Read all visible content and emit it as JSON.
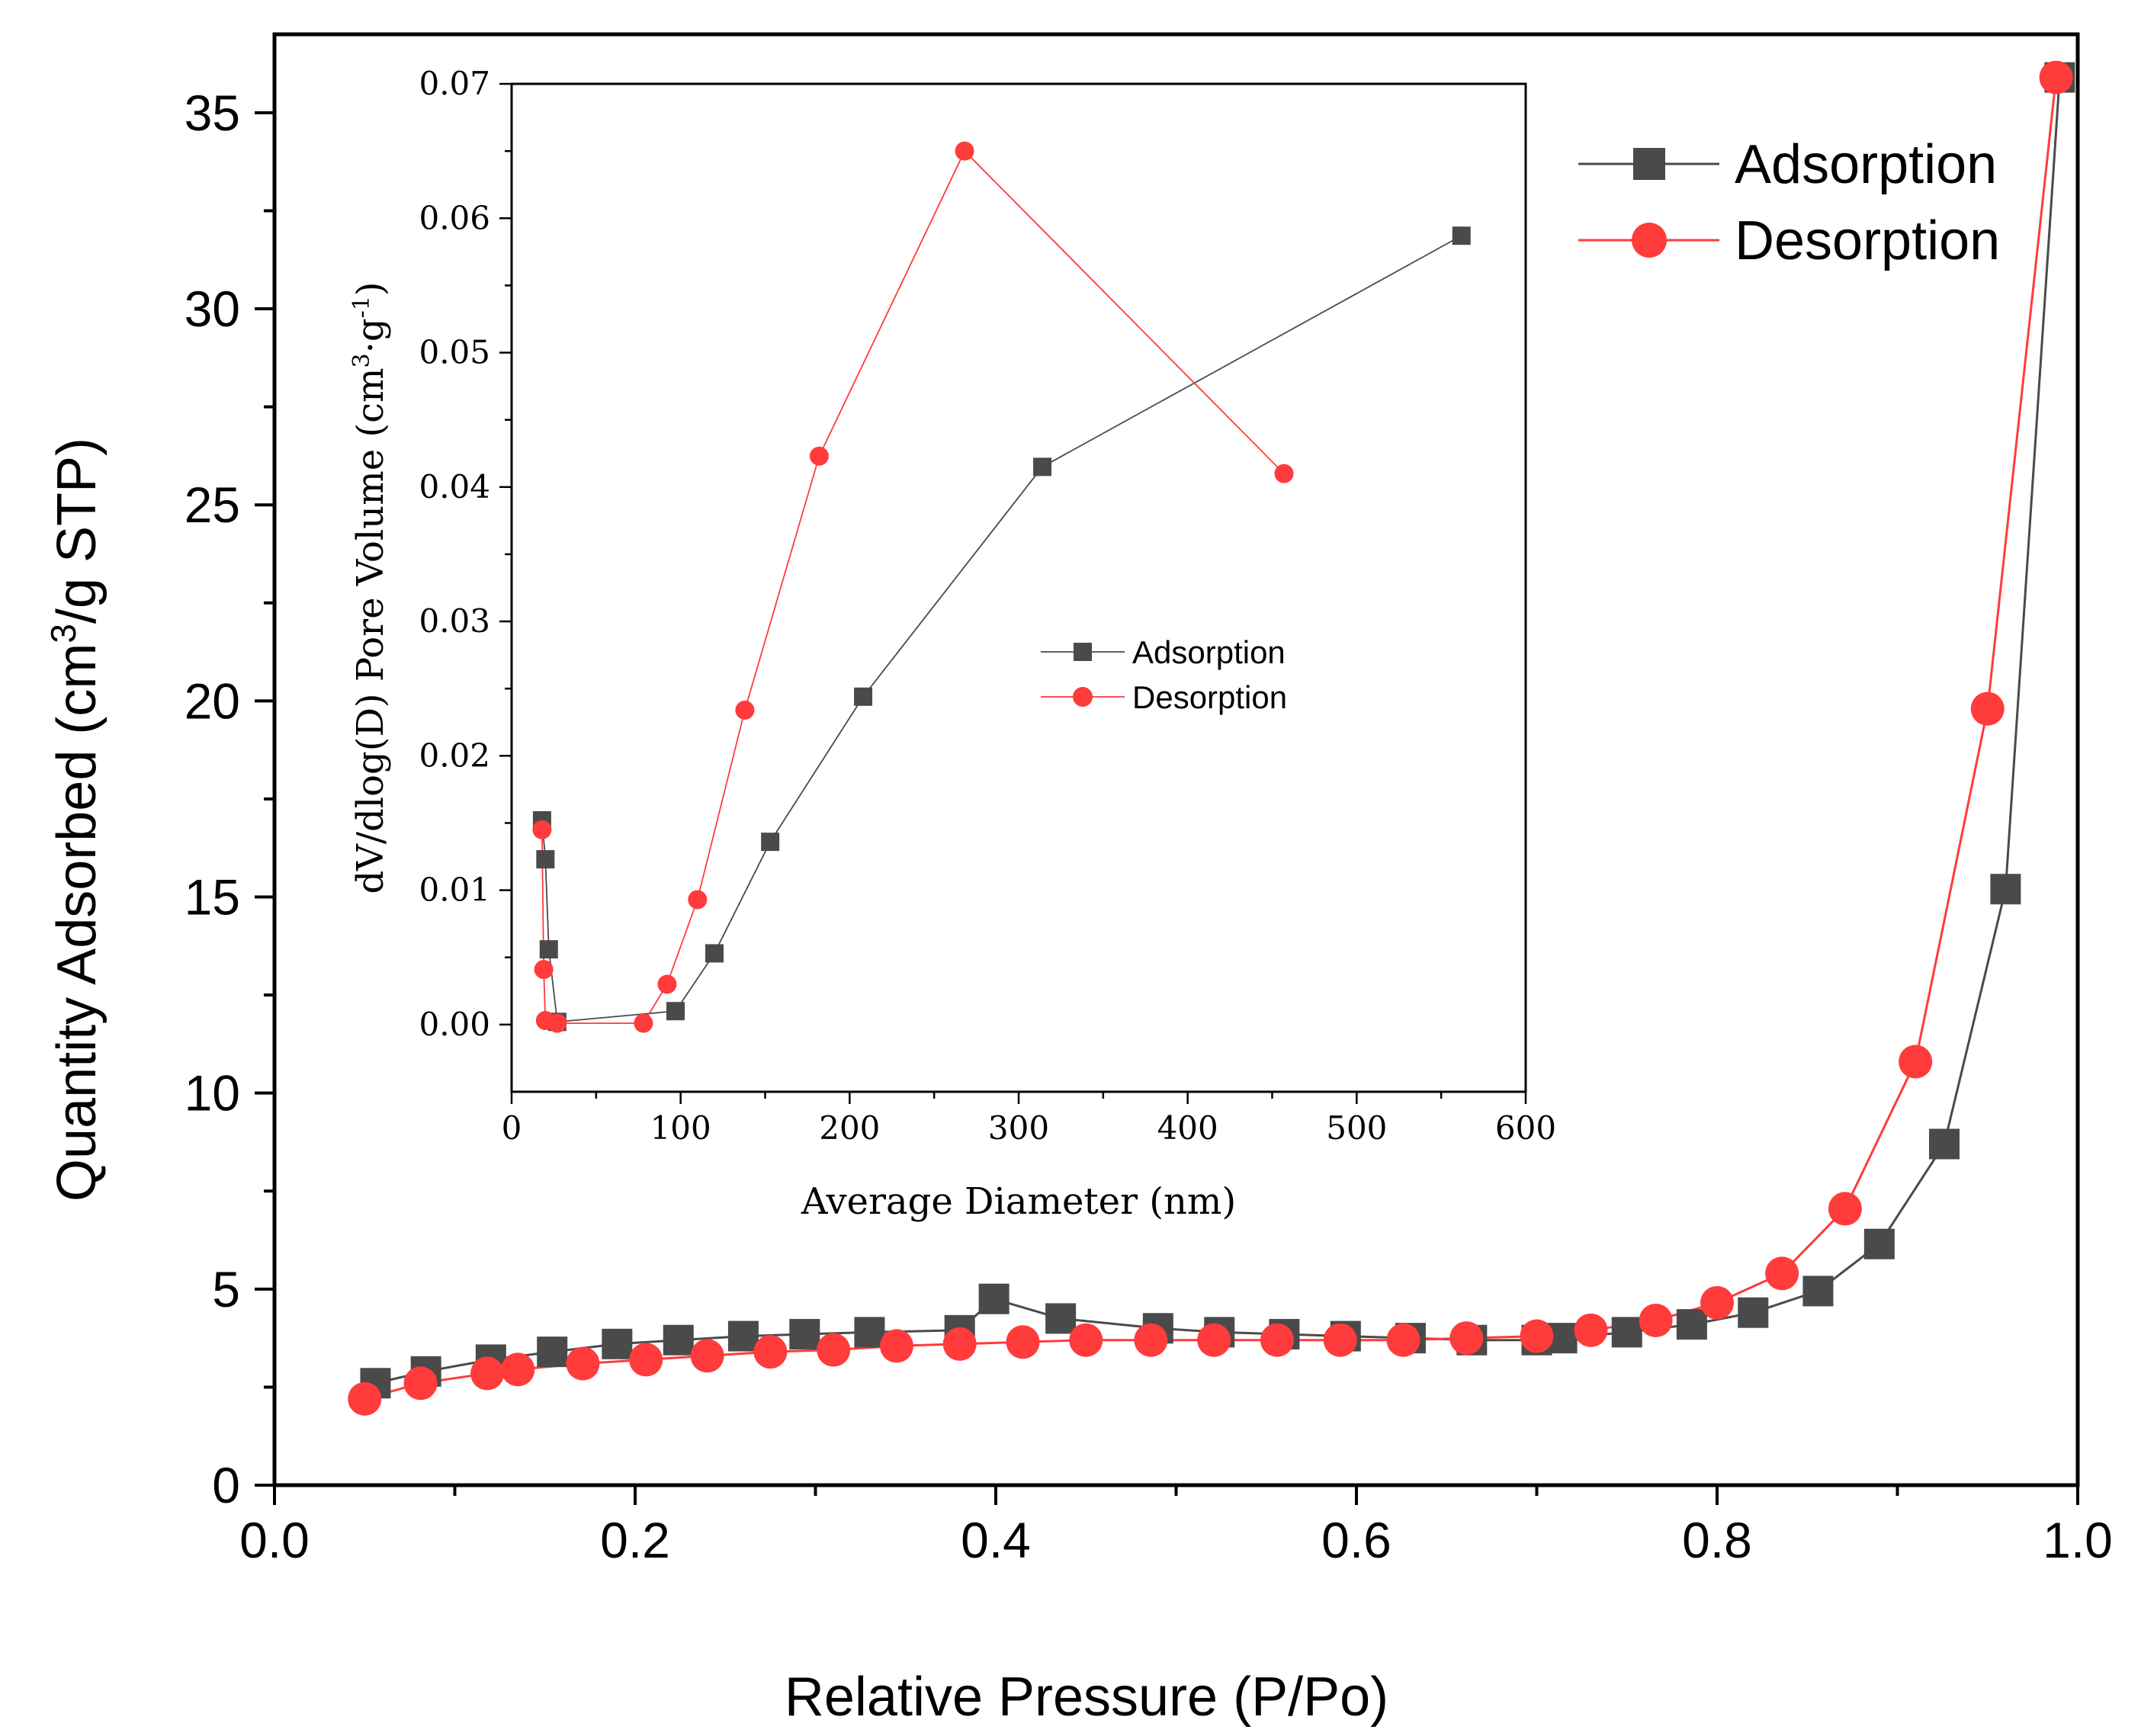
{
  "colors": {
    "adsorption": "#4a4a4a",
    "desorption": "#ff3b3b",
    "axis": "#000000"
  },
  "chart_data": [
    {
      "type": "scatter",
      "title": "",
      "xlabel": "Relative Pressure (P/Po)",
      "ylabel": "Quantity Adsorbed (cm3/g STP)",
      "ylabel_parts": {
        "before": "Quantity Adsorbed (cm",
        "sup": "3",
        "after": "/g STP)"
      },
      "xlim": [
        0.0,
        1.0
      ],
      "ylim": [
        0,
        37
      ],
      "xticks": [
        "0.0",
        "0.2",
        "0.4",
        "0.6",
        "0.8",
        "1.0"
      ],
      "yticks": [
        "0",
        "5",
        "10",
        "15",
        "20",
        "25",
        "30",
        "35"
      ],
      "legend_position": "top-right",
      "series": [
        {
          "name": "Adsorption",
          "marker": "square",
          "x": [
            0.056,
            0.084,
            0.12,
            0.154,
            0.19,
            0.224,
            0.26,
            0.294,
            0.33,
            0.38,
            0.399,
            0.436,
            0.49,
            0.524,
            0.56,
            0.594,
            0.63,
            0.664,
            0.7,
            0.714,
            0.75,
            0.786,
            0.82,
            0.856,
            0.89,
            0.926,
            0.96,
            0.99
          ],
          "y": [
            2.6,
            2.9,
            3.2,
            3.4,
            3.6,
            3.7,
            3.8,
            3.85,
            3.9,
            3.95,
            4.75,
            4.25,
            4.0,
            3.9,
            3.85,
            3.8,
            3.75,
            3.7,
            3.7,
            3.75,
            3.9,
            4.1,
            4.4,
            4.95,
            6.15,
            8.7,
            15.2,
            35.9
          ]
        },
        {
          "name": "Desorption",
          "marker": "circle",
          "x": [
            0.05,
            0.081,
            0.118,
            0.135,
            0.171,
            0.206,
            0.24,
            0.275,
            0.31,
            0.345,
            0.38,
            0.415,
            0.45,
            0.486,
            0.521,
            0.556,
            0.591,
            0.626,
            0.661,
            0.7,
            0.73,
            0.766,
            0.8,
            0.836,
            0.871,
            0.91,
            0.95,
            0.988
          ],
          "y": [
            2.2,
            2.6,
            2.85,
            2.95,
            3.1,
            3.2,
            3.3,
            3.4,
            3.45,
            3.55,
            3.6,
            3.65,
            3.7,
            3.7,
            3.7,
            3.7,
            3.7,
            3.7,
            3.75,
            3.8,
            3.95,
            4.2,
            4.65,
            5.4,
            7.05,
            10.8,
            19.8,
            35.9
          ]
        }
      ]
    },
    {
      "type": "line",
      "title": "",
      "xlabel": "Average Diameter (nm)",
      "ylabel": "dV/dlog(D) Pore Volume (cm3·g-1)",
      "ylabel_parts": {
        "before": "dV/dlog(D) Pore Volume (cm",
        "sup1": "3",
        "mid": "·g",
        "sup2": "-1",
        "after": ")"
      },
      "xlim": [
        0,
        600
      ],
      "ylim": [
        -0.005,
        0.07
      ],
      "xticks": [
        "0",
        "100",
        "200",
        "300",
        "400",
        "500",
        "600"
      ],
      "yticks": [
        "0.00",
        "0.01",
        "0.02",
        "0.03",
        "0.04",
        "0.05",
        "0.06",
        "0.07"
      ],
      "legend_position": "center",
      "series": [
        {
          "name": "Adsorption",
          "marker": "square",
          "x": [
            18,
            20,
            22,
            27,
            97,
            120,
            153,
            208,
            314,
            562
          ],
          "y": [
            0.0152,
            0.0123,
            0.0056,
            0.0002,
            0.001,
            0.0053,
            0.0136,
            0.0244,
            0.0415,
            0.0587
          ]
        },
        {
          "name": "Desorption",
          "marker": "circle",
          "x": [
            18,
            19,
            20,
            27,
            78,
            92,
            110,
            138,
            182,
            268,
            457
          ],
          "y": [
            0.0145,
            0.0041,
            0.0003,
            0.0001,
            0.0001,
            0.003,
            0.0093,
            0.0234,
            0.0423,
            0.065,
            0.041
          ]
        }
      ]
    }
  ]
}
